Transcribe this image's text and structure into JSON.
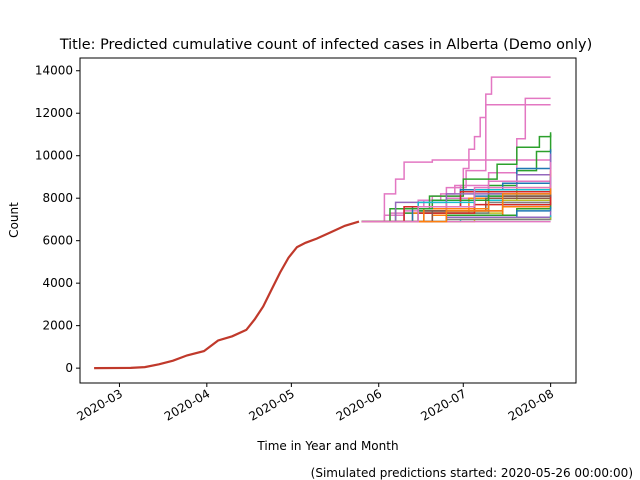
{
  "chart_data": {
    "type": "line",
    "title": "Title: Predicted cumulative count of infected cases in Alberta (Demo only)",
    "xlabel": "Time in Year and Month",
    "ylabel": "Count",
    "footnote": "(Simulated predictions started: 2020-05-26 00:00:00)",
    "x_range": [
      "2020-02-16",
      "2020-08-10"
    ],
    "ylim": [
      -700,
      14600
    ],
    "x_ticks": [
      {
        "date": "2020-03-01",
        "label": "2020-03"
      },
      {
        "date": "2020-04-01",
        "label": "2020-04"
      },
      {
        "date": "2020-05-01",
        "label": "2020-05"
      },
      {
        "date": "2020-06-01",
        "label": "2020-06"
      },
      {
        "date": "2020-07-01",
        "label": "2020-07"
      },
      {
        "date": "2020-08-01",
        "label": "2020-08"
      }
    ],
    "y_ticks": [
      0,
      2000,
      4000,
      6000,
      8000,
      10000,
      12000,
      14000
    ],
    "grid": false,
    "legend": "none",
    "prediction_start": "2020-05-26",
    "prediction_end": "2020-08-01",
    "observed_color": "#c0392b",
    "observed": {
      "x": [
        "2020-02-21",
        "2020-03-05",
        "2020-03-10",
        "2020-03-15",
        "2020-03-20",
        "2020-03-25",
        "2020-03-31",
        "2020-04-05",
        "2020-04-10",
        "2020-04-15",
        "2020-04-18",
        "2020-04-21",
        "2020-04-24",
        "2020-04-27",
        "2020-04-30",
        "2020-05-03",
        "2020-05-06",
        "2020-05-10",
        "2020-05-15",
        "2020-05-20",
        "2020-05-25"
      ],
      "y": [
        0,
        10,
        50,
        180,
        350,
        600,
        800,
        1300,
        1500,
        1800,
        2300,
        2900,
        3700,
        4500,
        5200,
        5700,
        5900,
        6100,
        6400,
        6700,
        6900
      ]
    },
    "series": [
      {
        "color": "#e377c2",
        "values": [
          [
            0,
            6900
          ],
          [
            8,
            7200
          ],
          [
            15,
            7600
          ],
          [
            22,
            7900
          ],
          [
            28,
            8200
          ],
          [
            33,
            8600
          ],
          [
            36,
            9400
          ],
          [
            38,
            10300
          ],
          [
            40,
            10900
          ],
          [
            42,
            11800
          ],
          [
            44,
            12900
          ],
          [
            46,
            13700
          ],
          [
            67,
            13700
          ]
        ]
      },
      {
        "color": "#e377c2",
        "values": [
          [
            0,
            6900
          ],
          [
            10,
            7300
          ],
          [
            20,
            7900
          ],
          [
            30,
            8500
          ],
          [
            37,
            9300
          ],
          [
            44,
            12400
          ],
          [
            67,
            12400
          ]
        ]
      },
      {
        "color": "#e377c2",
        "values": [
          [
            0,
            6900
          ],
          [
            15,
            7500
          ],
          [
            25,
            8100
          ],
          [
            35,
            8600
          ],
          [
            45,
            9200
          ],
          [
            55,
            10800
          ],
          [
            58,
            12700
          ],
          [
            67,
            12700
          ]
        ]
      },
      {
        "color": "#e377c2",
        "values": [
          [
            0,
            6900
          ],
          [
            8,
            8200
          ],
          [
            12,
            8900
          ],
          [
            15,
            9700
          ],
          [
            25,
            9800
          ],
          [
            35,
            9800
          ],
          [
            67,
            9800
          ]
        ]
      },
      {
        "color": "#2ca02c",
        "values": [
          [
            0,
            6900
          ],
          [
            12,
            7500
          ],
          [
            24,
            8100
          ],
          [
            36,
            8900
          ],
          [
            48,
            9600
          ],
          [
            55,
            10400
          ],
          [
            63,
            10900
          ],
          [
            67,
            11100
          ]
        ]
      },
      {
        "color": "#2ca02c",
        "values": [
          [
            0,
            6900
          ],
          [
            15,
            7300
          ],
          [
            30,
            7900
          ],
          [
            45,
            8600
          ],
          [
            55,
            9300
          ],
          [
            62,
            10200
          ],
          [
            67,
            11000
          ]
        ]
      },
      {
        "color": "#1f77b4",
        "values": [
          [
            0,
            6900
          ],
          [
            20,
            7600
          ],
          [
            40,
            8400
          ],
          [
            55,
            9400
          ],
          [
            67,
            10300
          ]
        ]
      },
      {
        "color": "#9467bd",
        "values": [
          [
            0,
            6900
          ],
          [
            20,
            7500
          ],
          [
            40,
            8300
          ],
          [
            55,
            9100
          ],
          [
            67,
            10100
          ]
        ]
      },
      {
        "color": "#e377c2",
        "values": [
          [
            0,
            6900
          ],
          [
            15,
            7400
          ],
          [
            30,
            8000
          ],
          [
            45,
            8800
          ],
          [
            67,
            9700
          ]
        ]
      },
      {
        "color": "#bcbd22",
        "values": [
          [
            0,
            6900
          ],
          [
            20,
            7300
          ],
          [
            40,
            7900
          ],
          [
            55,
            8500
          ],
          [
            67,
            9200
          ]
        ]
      },
      {
        "color": "#1f77b4",
        "values": [
          [
            0,
            6900
          ],
          [
            20,
            7400
          ],
          [
            40,
            8100
          ],
          [
            67,
            9100
          ]
        ]
      },
      {
        "color": "#ff7f0e",
        "values": [
          [
            0,
            6900
          ],
          [
            18,
            7300
          ],
          [
            38,
            8000
          ],
          [
            67,
            9000
          ]
        ]
      },
      {
        "color": "#2ca02c",
        "values": [
          [
            0,
            6900
          ],
          [
            20,
            7400
          ],
          [
            45,
            8100
          ],
          [
            67,
            8900
          ]
        ]
      },
      {
        "color": "#8c564b",
        "values": [
          [
            0,
            6900
          ],
          [
            22,
            7400
          ],
          [
            44,
            8000
          ],
          [
            67,
            8800
          ]
        ]
      },
      {
        "color": "#17becf",
        "values": [
          [
            0,
            6900
          ],
          [
            20,
            7300
          ],
          [
            45,
            7900
          ],
          [
            67,
            8600
          ]
        ]
      },
      {
        "color": "#bcbd22",
        "values": [
          [
            0,
            6900
          ],
          [
            25,
            7300
          ],
          [
            50,
            7900
          ],
          [
            67,
            8400
          ]
        ]
      },
      {
        "color": "#7f7f7f",
        "values": [
          [
            0,
            6900
          ],
          [
            22,
            7300
          ],
          [
            45,
            7800
          ],
          [
            67,
            8300
          ]
        ]
      },
      {
        "color": "#1f77b4",
        "values": [
          [
            0,
            6900
          ],
          [
            25,
            7200
          ],
          [
            50,
            7700
          ],
          [
            67,
            8200
          ]
        ]
      },
      {
        "color": "#ff7f0e",
        "values": [
          [
            0,
            6900
          ],
          [
            25,
            7200
          ],
          [
            50,
            7600
          ],
          [
            67,
            8000
          ]
        ]
      },
      {
        "color": "#2ca02c",
        "values": [
          [
            0,
            6900
          ],
          [
            30,
            7200
          ],
          [
            55,
            7500
          ],
          [
            67,
            7800
          ]
        ]
      },
      {
        "color": "#d62728",
        "values": [
          [
            0,
            6900
          ],
          [
            20,
            7300
          ],
          [
            40,
            7700
          ],
          [
            67,
            8100
          ]
        ]
      },
      {
        "color": "#1f77b4",
        "values": [
          [
            0,
            6900
          ],
          [
            30,
            7100
          ],
          [
            55,
            7400
          ],
          [
            67,
            7600
          ]
        ]
      },
      {
        "color": "#9467bd",
        "values": [
          [
            0,
            6900
          ],
          [
            30,
            7100
          ],
          [
            67,
            7400
          ]
        ]
      },
      {
        "color": "#17becf",
        "values": [
          [
            0,
            6900
          ],
          [
            35,
            7000
          ],
          [
            67,
            7200
          ]
        ]
      },
      {
        "color": "#bcbd22",
        "values": [
          [
            0,
            6900
          ],
          [
            10,
            6900
          ],
          [
            40,
            7000
          ],
          [
            67,
            7100
          ]
        ]
      },
      {
        "color": "#e377c2",
        "values": [
          [
            0,
            6900
          ],
          [
            67,
            6900
          ]
        ]
      },
      {
        "color": "#7f7f7f",
        "values": [
          [
            0,
            6900
          ],
          [
            30,
            7000
          ],
          [
            67,
            7000
          ]
        ]
      },
      {
        "color": "#8c564b",
        "values": [
          [
            0,
            6900
          ],
          [
            25,
            7400
          ],
          [
            50,
            8100
          ],
          [
            67,
            8700
          ]
        ]
      },
      {
        "color": "#ff7f0e",
        "values": [
          [
            0,
            6900
          ],
          [
            22,
            7500
          ],
          [
            45,
            8300
          ],
          [
            67,
            9300
          ]
        ]
      },
      {
        "color": "#1f77b4",
        "values": [
          [
            0,
            6900
          ],
          [
            18,
            7600
          ],
          [
            35,
            8400
          ],
          [
            50,
            8700
          ],
          [
            67,
            9000
          ]
        ]
      },
      {
        "color": "#2ca02c",
        "values": [
          [
            0,
            6900
          ],
          [
            10,
            7500
          ],
          [
            25,
            7900
          ],
          [
            45,
            8200
          ],
          [
            67,
            8500
          ]
        ]
      },
      {
        "color": "#d62728",
        "values": [
          [
            0,
            6900
          ],
          [
            15,
            7600
          ],
          [
            35,
            8300
          ],
          [
            67,
            8800
          ]
        ]
      },
      {
        "color": "#9467bd",
        "values": [
          [
            0,
            6900
          ],
          [
            12,
            7800
          ],
          [
            30,
            8200
          ],
          [
            67,
            8700
          ]
        ]
      },
      {
        "color": "#17becf",
        "values": [
          [
            0,
            6900
          ],
          [
            20,
            7800
          ],
          [
            40,
            8400
          ],
          [
            67,
            9000
          ]
        ]
      },
      {
        "color": "#ff7f0e",
        "values": [
          [
            0,
            6900
          ],
          [
            30,
            7400
          ],
          [
            50,
            8200
          ],
          [
            67,
            8600
          ]
        ]
      },
      {
        "color": "#e377c2",
        "values": [
          [
            0,
            6900
          ],
          [
            20,
            7600
          ],
          [
            40,
            8500
          ],
          [
            67,
            9300
          ]
        ]
      }
    ]
  }
}
